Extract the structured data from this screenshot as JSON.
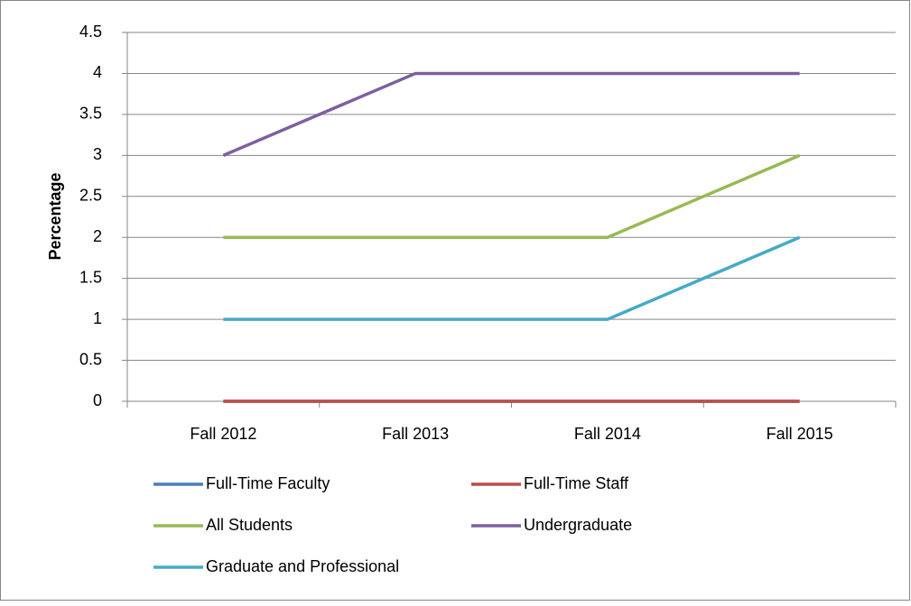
{
  "chart_data": {
    "type": "line",
    "y_label": "Percentage",
    "categories": [
      "Fall 2012",
      "Fall 2013",
      "Fall 2014",
      "Fall 2015"
    ],
    "series": [
      {
        "name": "Full-Time Faculty",
        "color": "#4a7ebb",
        "values": [
          0,
          0,
          0,
          0
        ]
      },
      {
        "name": "Full-Time Staff",
        "color": "#be4b48",
        "values": [
          0,
          0,
          0,
          0
        ]
      },
      {
        "name": "All Students",
        "color": "#98b954",
        "values": [
          2,
          2,
          2,
          3
        ]
      },
      {
        "name": "Undergraduate",
        "color": "#7d60a0",
        "values": [
          3,
          4,
          4,
          4
        ]
      },
      {
        "name": "Graduate and Professional",
        "color": "#46aac5",
        "values": [
          1,
          1,
          1,
          2
        ]
      }
    ],
    "ylim": [
      0,
      4.5
    ],
    "yticks": [
      0,
      0.5,
      1,
      1.5,
      2,
      2.5,
      3,
      3.5,
      4,
      4.5
    ],
    "grid": true,
    "legend": "bottom"
  }
}
